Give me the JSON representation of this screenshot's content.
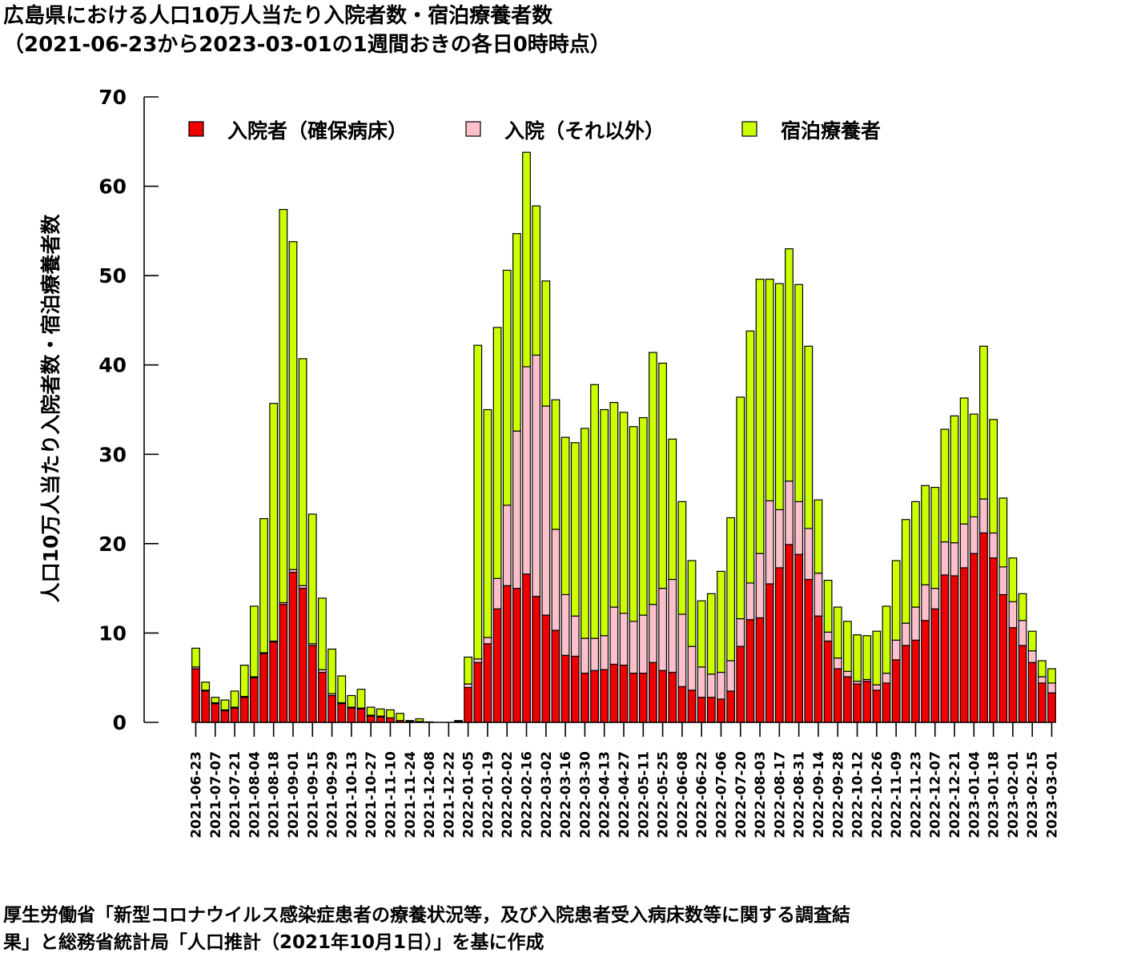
{
  "title_line1": "広島県における人口10万人当たり入院者数・宿泊療養者数",
  "title_line2": "（2021-06-23から2023-03-01の1週間おきの各日0時時点）",
  "source_line1": "厚生労働省「新型コロナウイルス感染症患者の療養状況等，及び入院患者受入病床数等に関する調査結",
  "source_line2": "果」と総務省統計局「人口推計（2021年10月1日）」を基に作成",
  "chart_data": {
    "type": "bar",
    "stacked": true,
    "title": "広島県における人口10万人当たり入院者数・宿泊療養者数",
    "subtitle": "（2021-06-23から2023-03-01の1週間おきの各日0時時点）",
    "ylabel": "人口10万人当たり入院者数・宿泊療養者数",
    "xlabel": "",
    "ylim": [
      0,
      70
    ],
    "yticks": [
      0,
      10,
      20,
      30,
      40,
      50,
      60,
      70
    ],
    "grid": false,
    "legend_position": "top",
    "categories": [
      "2021-06-23",
      "2021-06-30",
      "2021-07-07",
      "2021-07-14",
      "2021-07-21",
      "2021-07-28",
      "2021-08-04",
      "2021-08-11",
      "2021-08-18",
      "2021-08-25",
      "2021-09-01",
      "2021-09-08",
      "2021-09-15",
      "2021-09-22",
      "2021-09-29",
      "2021-10-06",
      "2021-10-13",
      "2021-10-20",
      "2021-10-27",
      "2021-11-03",
      "2021-11-10",
      "2021-11-17",
      "2021-11-24",
      "2021-12-01",
      "2021-12-08",
      "2021-12-15",
      "2021-12-22",
      "2021-12-29",
      "2022-01-05",
      "2022-01-12",
      "2022-01-19",
      "2022-01-26",
      "2022-02-02",
      "2022-02-09",
      "2022-02-16",
      "2022-02-23",
      "2022-03-02",
      "2022-03-09",
      "2022-03-16",
      "2022-03-23",
      "2022-03-30",
      "2022-04-06",
      "2022-04-13",
      "2022-04-20",
      "2022-04-27",
      "2022-05-04",
      "2022-05-11",
      "2022-05-18",
      "2022-05-25",
      "2022-06-01",
      "2022-06-08",
      "2022-06-15",
      "2022-06-22",
      "2022-06-29",
      "2022-07-06",
      "2022-07-13",
      "2022-07-20",
      "2022-07-27",
      "2022-08-03",
      "2022-08-10",
      "2022-08-17",
      "2022-08-24",
      "2022-08-31",
      "2022-09-07",
      "2022-09-14",
      "2022-09-21",
      "2022-09-28",
      "2022-10-05",
      "2022-10-12",
      "2022-10-19",
      "2022-10-26",
      "2022-11-02",
      "2022-11-09",
      "2022-11-16",
      "2022-11-23",
      "2022-11-30",
      "2022-12-07",
      "2022-12-14",
      "2022-12-21",
      "2022-12-28",
      "2023-01-04",
      "2023-01-11",
      "2023-01-18",
      "2023-01-25",
      "2023-02-01",
      "2023-02-08",
      "2023-02-15",
      "2023-02-22",
      "2023-03-01"
    ],
    "tick_labels": [
      "2021-06-23",
      "2021-07-07",
      "2021-07-21",
      "2021-08-04",
      "2021-08-18",
      "2021-09-01",
      "2021-09-15",
      "2021-09-29",
      "2021-10-13",
      "2021-10-27",
      "2021-11-10",
      "2021-11-24",
      "2021-12-08",
      "2021-12-22",
      "2022-01-05",
      "2022-01-19",
      "2022-02-02",
      "2022-02-16",
      "2022-03-02",
      "2022-03-16",
      "2022-03-30",
      "2022-04-13",
      "2022-04-27",
      "2022-05-11",
      "2022-05-25",
      "2022-06-08",
      "2022-06-22",
      "2022-07-06",
      "2022-07-20",
      "2022-08-03",
      "2022-08-17",
      "2022-08-31",
      "2022-09-14",
      "2022-09-28",
      "2022-10-12",
      "2022-10-26",
      "2022-11-09",
      "2022-11-23",
      "2022-12-07",
      "2022-12-21",
      "2023-01-04",
      "2023-01-18",
      "2023-02-01",
      "2023-02-15",
      "2023-03-01"
    ],
    "series": [
      {
        "name": "入院者（確保病床）",
        "color": "#ee0000",
        "values": [
          6.0,
          3.5,
          2.1,
          1.3,
          1.6,
          2.8,
          5.0,
          7.7,
          9.0,
          13.2,
          16.8,
          15.0,
          8.6,
          5.6,
          3.0,
          2.1,
          1.6,
          1.5,
          0.7,
          0.6,
          0.5,
          0.2,
          0.1,
          0.1,
          0.05,
          0,
          0,
          0.1,
          3.9,
          6.7,
          8.8,
          12.7,
          15.3,
          15.0,
          16.6,
          14.1,
          12.0,
          10.3,
          7.5,
          7.4,
          5.5,
          5.8,
          5.9,
          6.5,
          6.4,
          5.5,
          5.5,
          6.7,
          5.8,
          5.6,
          4.0,
          3.6,
          2.8,
          2.8,
          2.6,
          3.5,
          8.5,
          11.5,
          11.7,
          15.5,
          17.3,
          19.9,
          18.8,
          16.0,
          11.9,
          9.1,
          6.0,
          5.1,
          4.3,
          4.6,
          3.6,
          4.4,
          7.0,
          8.6,
          9.2,
          11.4,
          12.7,
          16.5,
          16.4,
          17.3,
          18.9,
          21.2,
          18.4,
          14.3,
          10.6,
          8.6,
          6.7,
          4.4,
          3.3
        ]
      },
      {
        "name": "入院（それ以外）",
        "color": "#ffc0cb",
        "values": [
          0.2,
          0.1,
          0.1,
          0.1,
          0.1,
          0.1,
          0.1,
          0.1,
          0.1,
          0.2,
          0.3,
          0.3,
          0.2,
          0.3,
          0.2,
          0.1,
          0.1,
          0.1,
          0.1,
          0.1,
          0,
          0,
          0,
          0,
          0,
          0,
          0,
          0,
          0.4,
          0.4,
          0.7,
          3.4,
          9.0,
          17.6,
          23.2,
          27.0,
          23.4,
          11.3,
          6.8,
          4.5,
          3.9,
          3.6,
          3.8,
          6.4,
          5.8,
          5.8,
          6.5,
          6.5,
          9.2,
          10.4,
          8.1,
          4.9,
          3.4,
          2.6,
          3.0,
          3.4,
          3.1,
          4.1,
          7.2,
          9.3,
          6.5,
          7.1,
          5.9,
          5.7,
          4.8,
          1.0,
          1.2,
          0.6,
          0.3,
          0.2,
          0.6,
          1.1,
          2.2,
          2.5,
          3.7,
          4.0,
          2.3,
          3.7,
          3.7,
          4.9,
          4.1,
          3.8,
          2.8,
          3.1,
          2.9,
          2.8,
          1.3,
          0.7,
          1.1
        ]
      },
      {
        "name": "宿泊療養者",
        "color": "#ccff00",
        "values": [
          2.1,
          0.9,
          0.6,
          1.1,
          1.8,
          3.5,
          7.9,
          15.0,
          26.6,
          44.0,
          36.7,
          25.4,
          14.5,
          8.0,
          5.0,
          3.0,
          1.3,
          2.1,
          0.9,
          0.8,
          0.9,
          0.8,
          0.1,
          0.3,
          0,
          0,
          0,
          0.1,
          3.0,
          35.1,
          25.5,
          28.1,
          26.3,
          22.1,
          24.0,
          16.7,
          14.0,
          14.5,
          17.6,
          19.4,
          23.5,
          28.4,
          25.3,
          22.9,
          22.5,
          21.8,
          22.1,
          28.2,
          25.2,
          15.7,
          12.6,
          9.6,
          7.4,
          9.0,
          11.3,
          16.0,
          24.8,
          28.2,
          30.7,
          24.8,
          25.3,
          26.0,
          24.3,
          20.4,
          8.2,
          5.8,
          5.7,
          5.6,
          5.2,
          4.9,
          6.0,
          7.5,
          8.9,
          11.6,
          11.8,
          11.1,
          11.3,
          12.6,
          14.2,
          14.1,
          11.5,
          17.1,
          12.7,
          7.7,
          4.9,
          3.0,
          2.2,
          1.8,
          1.6
        ]
      }
    ]
  }
}
